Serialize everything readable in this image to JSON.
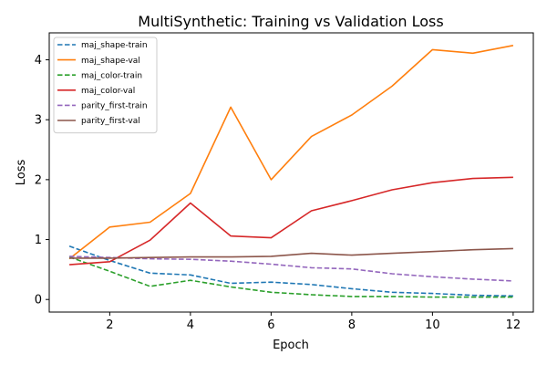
{
  "chart_data": {
    "type": "line",
    "title": "MultiSynthetic: Training vs Validation Loss",
    "xlabel": "Epoch",
    "ylabel": "Loss",
    "x": [
      1,
      2,
      3,
      4,
      5,
      6,
      7,
      8,
      9,
      10,
      11,
      12
    ],
    "xlim": [
      0.5,
      12.5
    ],
    "ylim": [
      -0.21,
      4.45
    ],
    "xticks": [
      2,
      4,
      6,
      8,
      10,
      12
    ],
    "yticks": [
      0,
      1,
      2,
      3,
      4
    ],
    "grid": false,
    "legend_position": "top-left",
    "series": [
      {
        "name": "maj_shape-train",
        "color": "#1f77b4",
        "dash": true,
        "values": [
          0.89,
          0.65,
          0.44,
          0.41,
          0.27,
          0.29,
          0.25,
          0.18,
          0.12,
          0.1,
          0.07,
          0.06
        ]
      },
      {
        "name": "maj_shape-val",
        "color": "#ff7f0e",
        "dash": false,
        "values": [
          0.68,
          1.21,
          1.29,
          1.77,
          3.21,
          2.0,
          2.72,
          3.08,
          3.56,
          4.17,
          4.11,
          4.24
        ]
      },
      {
        "name": "maj_color-train",
        "color": "#2ca02c",
        "dash": true,
        "values": [
          0.71,
          0.47,
          0.22,
          0.32,
          0.21,
          0.12,
          0.08,
          0.05,
          0.05,
          0.04,
          0.04,
          0.04
        ]
      },
      {
        "name": "maj_color-val",
        "color": "#d62728",
        "dash": false,
        "values": [
          0.58,
          0.63,
          0.99,
          1.61,
          1.06,
          1.03,
          1.48,
          1.65,
          1.83,
          1.95,
          2.02,
          2.04
        ]
      },
      {
        "name": "parity_first-train",
        "color": "#9467bd",
        "dash": true,
        "values": [
          0.72,
          0.7,
          0.68,
          0.67,
          0.64,
          0.59,
          0.53,
          0.51,
          0.43,
          0.38,
          0.34,
          0.31
        ]
      },
      {
        "name": "parity_first-val",
        "color": "#8c564b",
        "dash": false,
        "values": [
          0.69,
          0.69,
          0.7,
          0.71,
          0.71,
          0.72,
          0.77,
          0.74,
          0.77,
          0.8,
          0.83,
          0.85
        ]
      }
    ]
  }
}
